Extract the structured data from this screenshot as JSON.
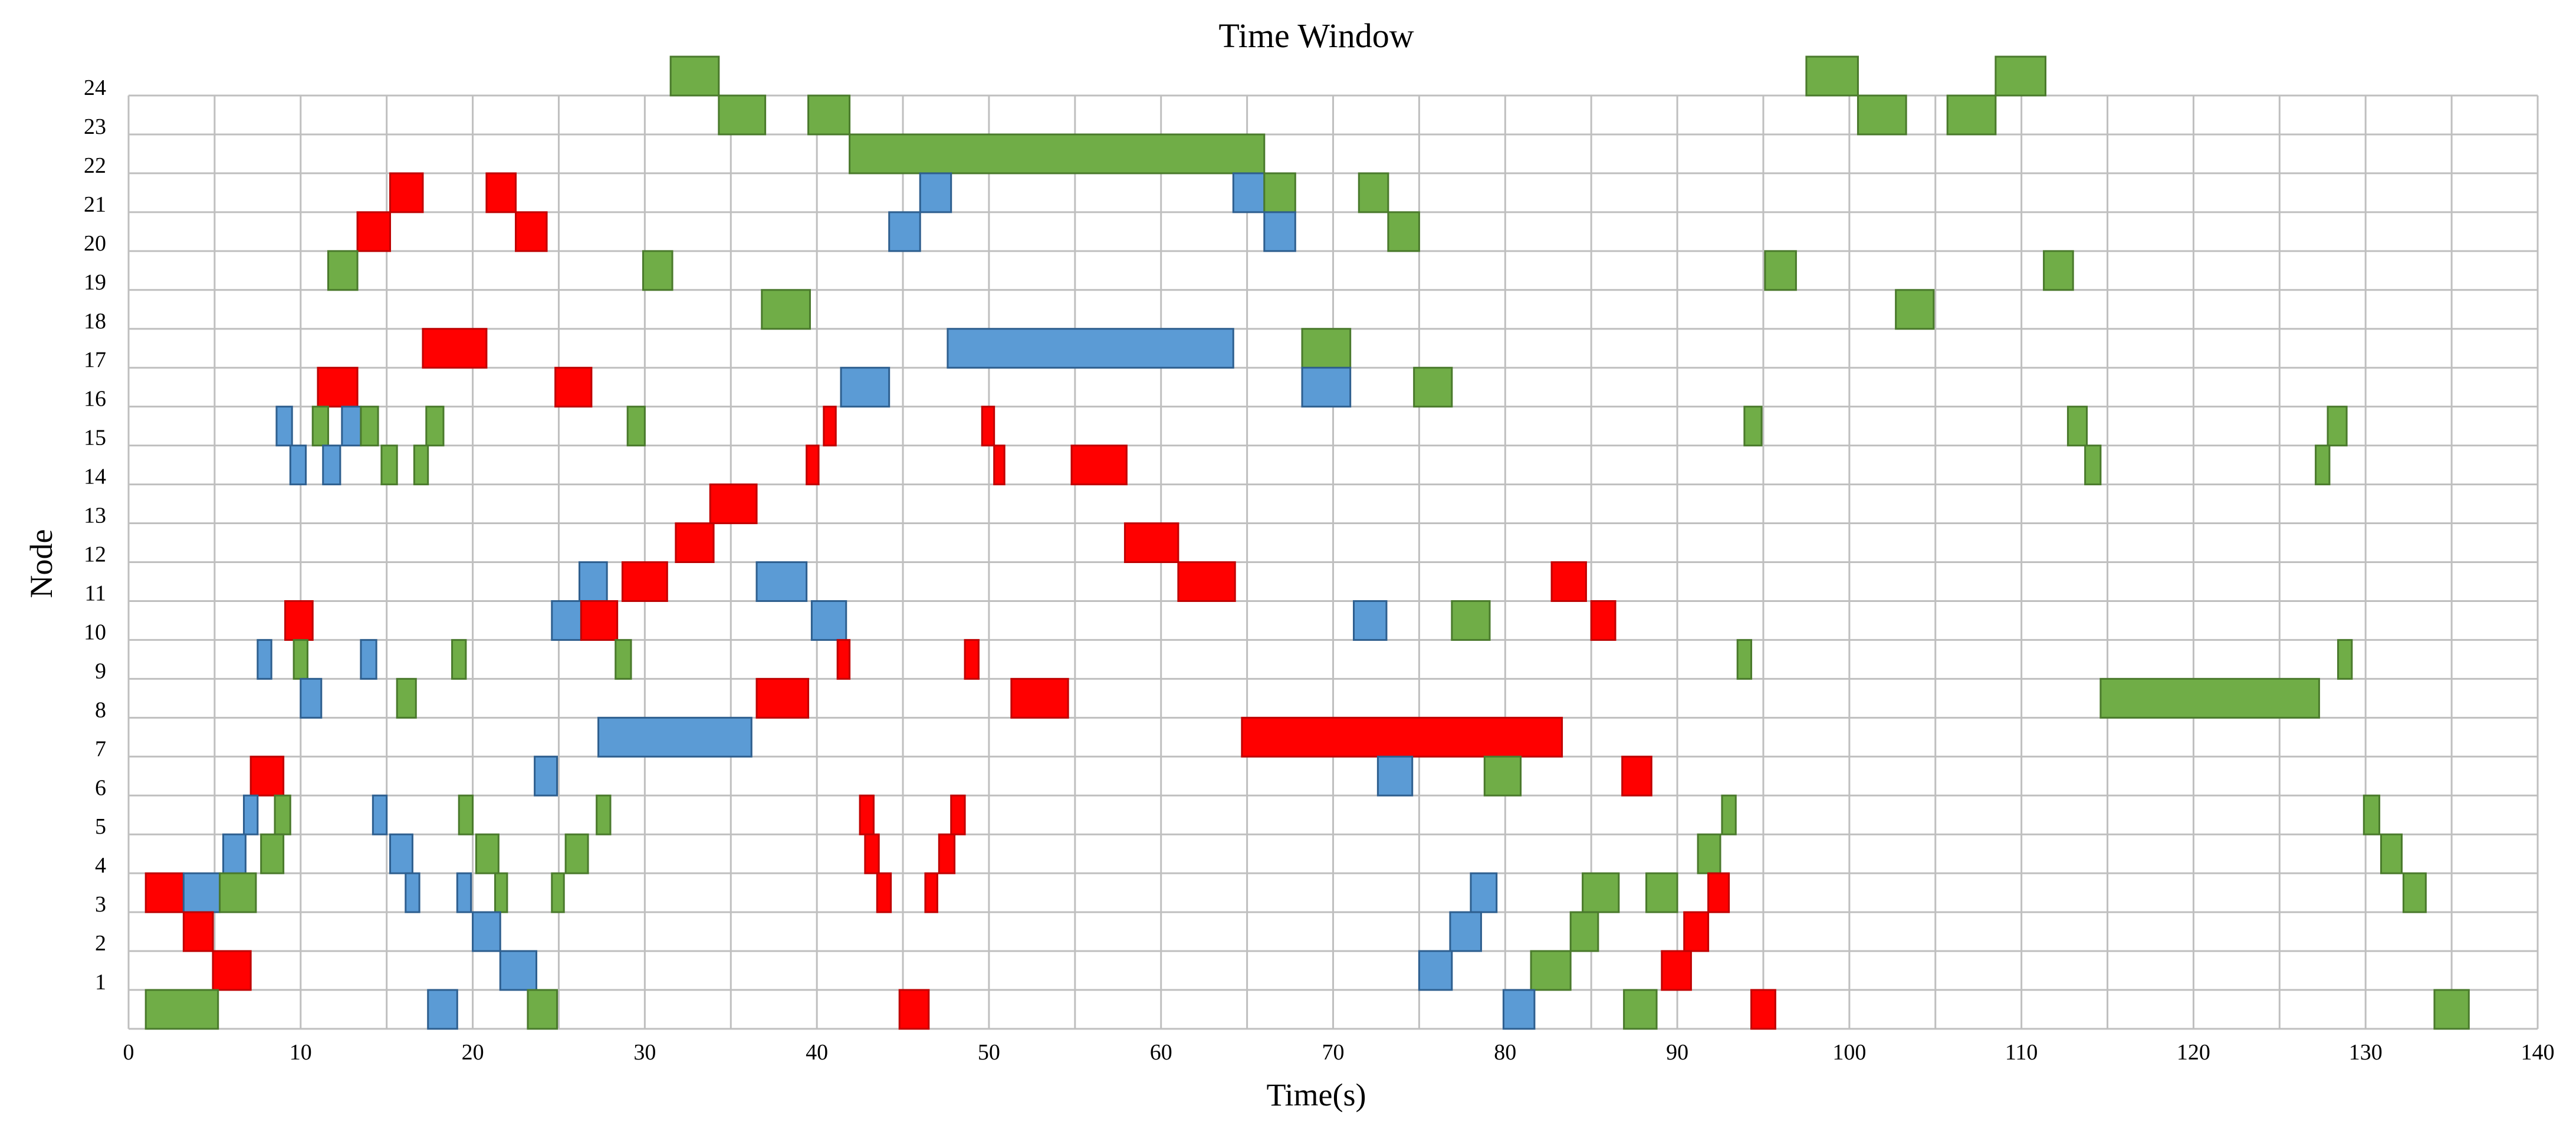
{
  "chart_data": {
    "type": "gantt",
    "title": "Time Window",
    "xlabel": "Time(s)",
    "ylabel": "Node",
    "xlim": [
      0,
      140
    ],
    "ylim": [
      1,
      24
    ],
    "x_ticks": [
      0,
      10,
      20,
      30,
      40,
      50,
      60,
      70,
      80,
      90,
      100,
      110,
      120,
      130,
      140
    ],
    "y_ticks": [
      1,
      2,
      3,
      4,
      5,
      6,
      7,
      8,
      9,
      10,
      11,
      12,
      13,
      14,
      15,
      16,
      17,
      18,
      19,
      20,
      21,
      22,
      23,
      24
    ],
    "grid": true,
    "colors": {
      "red": "#ff0000",
      "blue": "#5b9bd5",
      "green": "#70ad47"
    },
    "bars": [
      {
        "node": 24,
        "start": 31.5,
        "end": 34.3,
        "color": "green"
      },
      {
        "node": 24,
        "start": 97.5,
        "end": 100.5,
        "color": "green"
      },
      {
        "node": 24,
        "start": 108.5,
        "end": 111.4,
        "color": "green"
      },
      {
        "node": 23,
        "start": 34.3,
        "end": 37.0,
        "color": "green"
      },
      {
        "node": 23,
        "start": 39.5,
        "end": 41.9,
        "color": "green"
      },
      {
        "node": 23,
        "start": 100.5,
        "end": 103.3,
        "color": "green"
      },
      {
        "node": 23,
        "start": 105.7,
        "end": 108.5,
        "color": "green"
      },
      {
        "node": 22,
        "start": 41.9,
        "end": 66.0,
        "color": "green"
      },
      {
        "node": 21,
        "start": 15.2,
        "end": 17.1,
        "color": "red"
      },
      {
        "node": 21,
        "start": 20.8,
        "end": 22.5,
        "color": "red"
      },
      {
        "node": 21,
        "start": 46.0,
        "end": 47.8,
        "color": "blue"
      },
      {
        "node": 21,
        "start": 64.2,
        "end": 66.0,
        "color": "blue"
      },
      {
        "node": 21,
        "start": 66.0,
        "end": 67.8,
        "color": "green"
      },
      {
        "node": 21,
        "start": 71.5,
        "end": 73.2,
        "color": "green"
      },
      {
        "node": 20,
        "start": 13.3,
        "end": 15.2,
        "color": "red"
      },
      {
        "node": 20,
        "start": 22.5,
        "end": 24.3,
        "color": "red"
      },
      {
        "node": 20,
        "start": 44.2,
        "end": 46.0,
        "color": "blue"
      },
      {
        "node": 20,
        "start": 66.0,
        "end": 67.8,
        "color": "blue"
      },
      {
        "node": 20,
        "start": 73.2,
        "end": 75.0,
        "color": "green"
      },
      {
        "node": 19,
        "start": 11.6,
        "end": 13.3,
        "color": "green"
      },
      {
        "node": 19,
        "start": 29.9,
        "end": 31.6,
        "color": "green"
      },
      {
        "node": 19,
        "start": 95.1,
        "end": 96.9,
        "color": "green"
      },
      {
        "node": 19,
        "start": 111.3,
        "end": 113.0,
        "color": "green"
      },
      {
        "node": 18,
        "start": 36.8,
        "end": 39.6,
        "color": "green"
      },
      {
        "node": 18,
        "start": 102.7,
        "end": 104.9,
        "color": "green"
      },
      {
        "node": 17,
        "start": 17.1,
        "end": 20.8,
        "color": "red"
      },
      {
        "node": 17,
        "start": 47.6,
        "end": 64.2,
        "color": "blue"
      },
      {
        "node": 17,
        "start": 68.2,
        "end": 71.0,
        "color": "green"
      },
      {
        "node": 16,
        "start": 11.0,
        "end": 13.3,
        "color": "red"
      },
      {
        "node": 16,
        "start": 24.8,
        "end": 26.9,
        "color": "red"
      },
      {
        "node": 16,
        "start": 41.4,
        "end": 44.2,
        "color": "blue"
      },
      {
        "node": 16,
        "start": 68.2,
        "end": 71.0,
        "color": "blue"
      },
      {
        "node": 16,
        "start": 74.7,
        "end": 76.9,
        "color": "green"
      },
      {
        "node": 15,
        "start": 8.6,
        "end": 9.5,
        "color": "blue"
      },
      {
        "node": 15,
        "start": 10.7,
        "end": 11.6,
        "color": "green"
      },
      {
        "node": 15,
        "start": 12.4,
        "end": 13.5,
        "color": "blue"
      },
      {
        "node": 15,
        "start": 13.5,
        "end": 14.5,
        "color": "green"
      },
      {
        "node": 15,
        "start": 17.3,
        "end": 18.3,
        "color": "green"
      },
      {
        "node": 15,
        "start": 29.0,
        "end": 30.0,
        "color": "green"
      },
      {
        "node": 15,
        "start": 40.4,
        "end": 41.1,
        "color": "red"
      },
      {
        "node": 15,
        "start": 49.6,
        "end": 50.3,
        "color": "red"
      },
      {
        "node": 15,
        "start": 93.9,
        "end": 94.9,
        "color": "green"
      },
      {
        "node": 15,
        "start": 112.7,
        "end": 113.8,
        "color": "green"
      },
      {
        "node": 15,
        "start": 127.8,
        "end": 128.9,
        "color": "green"
      },
      {
        "node": 14,
        "start": 9.4,
        "end": 10.3,
        "color": "blue"
      },
      {
        "node": 14,
        "start": 11.3,
        "end": 12.3,
        "color": "blue"
      },
      {
        "node": 14,
        "start": 14.7,
        "end": 15.6,
        "color": "green"
      },
      {
        "node": 14,
        "start": 16.6,
        "end": 17.4,
        "color": "green"
      },
      {
        "node": 14,
        "start": 39.4,
        "end": 40.1,
        "color": "red"
      },
      {
        "node": 14,
        "start": 50.3,
        "end": 50.9,
        "color": "red"
      },
      {
        "node": 14,
        "start": 54.8,
        "end": 58.0,
        "color": "red"
      },
      {
        "node": 14,
        "start": 113.7,
        "end": 114.6,
        "color": "green"
      },
      {
        "node": 14,
        "start": 127.1,
        "end": 127.9,
        "color": "green"
      },
      {
        "node": 13,
        "start": 33.8,
        "end": 36.5,
        "color": "red"
      },
      {
        "node": 12,
        "start": 31.8,
        "end": 34.0,
        "color": "red"
      },
      {
        "node": 12,
        "start": 57.9,
        "end": 61.0,
        "color": "red"
      },
      {
        "node": 11,
        "start": 26.2,
        "end": 27.8,
        "color": "blue"
      },
      {
        "node": 11,
        "start": 28.7,
        "end": 31.3,
        "color": "red"
      },
      {
        "node": 11,
        "start": 36.5,
        "end": 39.4,
        "color": "blue"
      },
      {
        "node": 11,
        "start": 61.0,
        "end": 64.3,
        "color": "red"
      },
      {
        "node": 11,
        "start": 82.7,
        "end": 84.7,
        "color": "red"
      },
      {
        "node": 10,
        "start": 9.1,
        "end": 10.7,
        "color": "red"
      },
      {
        "node": 10,
        "start": 24.6,
        "end": 26.3,
        "color": "blue"
      },
      {
        "node": 10,
        "start": 26.3,
        "end": 28.4,
        "color": "red"
      },
      {
        "node": 10,
        "start": 39.7,
        "end": 41.7,
        "color": "blue"
      },
      {
        "node": 10,
        "start": 71.2,
        "end": 73.1,
        "color": "blue"
      },
      {
        "node": 10,
        "start": 76.9,
        "end": 79.1,
        "color": "green"
      },
      {
        "node": 10,
        "start": 85.0,
        "end": 86.4,
        "color": "red"
      },
      {
        "node": 9,
        "start": 7.5,
        "end": 8.3,
        "color": "blue"
      },
      {
        "node": 9,
        "start": 9.6,
        "end": 10.4,
        "color": "green"
      },
      {
        "node": 9,
        "start": 13.5,
        "end": 14.4,
        "color": "blue"
      },
      {
        "node": 9,
        "start": 18.8,
        "end": 19.6,
        "color": "green"
      },
      {
        "node": 9,
        "start": 28.3,
        "end": 29.2,
        "color": "green"
      },
      {
        "node": 9,
        "start": 41.2,
        "end": 41.9,
        "color": "red"
      },
      {
        "node": 9,
        "start": 48.6,
        "end": 49.4,
        "color": "red"
      },
      {
        "node": 9,
        "start": 93.5,
        "end": 94.3,
        "color": "green"
      },
      {
        "node": 9,
        "start": 128.4,
        "end": 129.2,
        "color": "green"
      },
      {
        "node": 8,
        "start": 10.0,
        "end": 11.2,
        "color": "blue"
      },
      {
        "node": 8,
        "start": 15.6,
        "end": 16.7,
        "color": "green"
      },
      {
        "node": 8,
        "start": 36.5,
        "end": 39.5,
        "color": "red"
      },
      {
        "node": 8,
        "start": 51.3,
        "end": 54.6,
        "color": "red"
      },
      {
        "node": 8,
        "start": 114.6,
        "end": 127.3,
        "color": "green"
      },
      {
        "node": 7,
        "start": 27.3,
        "end": 36.2,
        "color": "blue"
      },
      {
        "node": 7,
        "start": 64.7,
        "end": 83.3,
        "color": "red"
      },
      {
        "node": 6,
        "start": 7.1,
        "end": 9.0,
        "color": "red"
      },
      {
        "node": 6,
        "start": 23.6,
        "end": 24.9,
        "color": "blue"
      },
      {
        "node": 6,
        "start": 72.6,
        "end": 74.6,
        "color": "blue"
      },
      {
        "node": 6,
        "start": 78.8,
        "end": 80.9,
        "color": "green"
      },
      {
        "node": 6,
        "start": 86.8,
        "end": 88.5,
        "color": "red"
      },
      {
        "node": 5,
        "start": 6.7,
        "end": 7.5,
        "color": "blue"
      },
      {
        "node": 5,
        "start": 8.5,
        "end": 9.4,
        "color": "green"
      },
      {
        "node": 5,
        "start": 14.2,
        "end": 15.0,
        "color": "blue"
      },
      {
        "node": 5,
        "start": 19.2,
        "end": 20.0,
        "color": "green"
      },
      {
        "node": 5,
        "start": 27.2,
        "end": 28.0,
        "color": "green"
      },
      {
        "node": 5,
        "start": 42.5,
        "end": 43.3,
        "color": "red"
      },
      {
        "node": 5,
        "start": 47.8,
        "end": 48.6,
        "color": "red"
      },
      {
        "node": 5,
        "start": 92.6,
        "end": 93.4,
        "color": "green"
      },
      {
        "node": 5,
        "start": 129.9,
        "end": 130.8,
        "color": "green"
      },
      {
        "node": 4,
        "start": 5.5,
        "end": 6.8,
        "color": "blue"
      },
      {
        "node": 4,
        "start": 7.7,
        "end": 9.0,
        "color": "green"
      },
      {
        "node": 4,
        "start": 15.2,
        "end": 16.5,
        "color": "blue"
      },
      {
        "node": 4,
        "start": 20.2,
        "end": 21.5,
        "color": "green"
      },
      {
        "node": 4,
        "start": 25.4,
        "end": 26.7,
        "color": "green"
      },
      {
        "node": 4,
        "start": 42.8,
        "end": 43.6,
        "color": "red"
      },
      {
        "node": 4,
        "start": 47.1,
        "end": 48.0,
        "color": "red"
      },
      {
        "node": 4,
        "start": 91.2,
        "end": 92.5,
        "color": "green"
      },
      {
        "node": 4,
        "start": 130.9,
        "end": 132.1,
        "color": "green"
      },
      {
        "node": 3,
        "start": 1.0,
        "end": 3.2,
        "color": "red"
      },
      {
        "node": 3,
        "start": 3.2,
        "end": 5.3,
        "color": "blue"
      },
      {
        "node": 3,
        "start": 5.3,
        "end": 7.4,
        "color": "green"
      },
      {
        "node": 3,
        "start": 16.1,
        "end": 16.9,
        "color": "blue"
      },
      {
        "node": 3,
        "start": 19.1,
        "end": 19.9,
        "color": "blue"
      },
      {
        "node": 3,
        "start": 21.3,
        "end": 22.0,
        "color": "green"
      },
      {
        "node": 3,
        "start": 24.6,
        "end": 25.3,
        "color": "green"
      },
      {
        "node": 3,
        "start": 43.5,
        "end": 44.3,
        "color": "red"
      },
      {
        "node": 3,
        "start": 46.3,
        "end": 47.0,
        "color": "red"
      },
      {
        "node": 3,
        "start": 78.0,
        "end": 79.5,
        "color": "blue"
      },
      {
        "node": 3,
        "start": 84.5,
        "end": 86.6,
        "color": "green"
      },
      {
        "node": 3,
        "start": 88.2,
        "end": 90.0,
        "color": "green"
      },
      {
        "node": 3,
        "start": 91.8,
        "end": 93.0,
        "color": "red"
      },
      {
        "node": 3,
        "start": 132.2,
        "end": 133.5,
        "color": "green"
      },
      {
        "node": 2,
        "start": 3.2,
        "end": 4.9,
        "color": "red"
      },
      {
        "node": 2,
        "start": 20.0,
        "end": 21.6,
        "color": "blue"
      },
      {
        "node": 2,
        "start": 76.8,
        "end": 78.6,
        "color": "blue"
      },
      {
        "node": 2,
        "start": 83.8,
        "end": 85.4,
        "color": "green"
      },
      {
        "node": 2,
        "start": 90.4,
        "end": 91.8,
        "color": "red"
      },
      {
        "node": 1,
        "start": 4.9,
        "end": 7.1,
        "color": "red"
      },
      {
        "node": 1,
        "start": 21.6,
        "end": 23.7,
        "color": "blue"
      },
      {
        "node": 1,
        "start": 75.0,
        "end": 76.9,
        "color": "blue"
      },
      {
        "node": 1,
        "start": 81.5,
        "end": 83.8,
        "color": "green"
      },
      {
        "node": 1,
        "start": 89.1,
        "end": 90.8,
        "color": "red"
      },
      {
        "node": 0,
        "start": 1.0,
        "end": 5.2,
        "color": "green"
      },
      {
        "node": 0,
        "start": 17.4,
        "end": 19.1,
        "color": "blue"
      },
      {
        "node": 0,
        "start": 23.2,
        "end": 24.9,
        "color": "green"
      },
      {
        "node": 0,
        "start": 44.8,
        "end": 46.5,
        "color": "red"
      },
      {
        "node": 0,
        "start": 79.9,
        "end": 81.7,
        "color": "blue"
      },
      {
        "node": 0,
        "start": 86.9,
        "end": 88.8,
        "color": "green"
      },
      {
        "node": 0,
        "start": 94.3,
        "end": 95.7,
        "color": "red"
      },
      {
        "node": 0,
        "start": 134.0,
        "end": 136.0,
        "color": "green"
      }
    ]
  }
}
